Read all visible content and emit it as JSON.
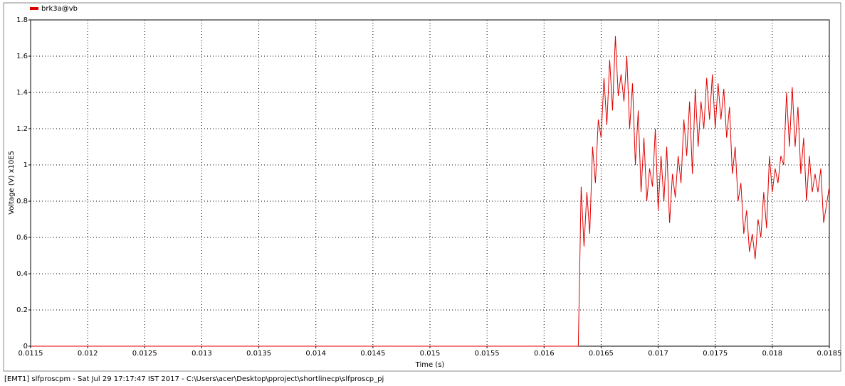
{
  "chart_data": {
    "type": "line",
    "ylabel": "Voltage (V) x10E5",
    "xlabel": "Time (s)",
    "x": [
      0.0115,
      0.0163,
      0.016325,
      0.01635,
      0.016375,
      0.0164,
      0.016425,
      0.01645,
      0.016475,
      0.0165,
      0.016525,
      0.01655,
      0.016575,
      0.0166,
      0.016625,
      0.01665,
      0.016675,
      0.0167,
      0.016725,
      0.01675,
      0.016775,
      0.0168,
      0.016825,
      0.01685,
      0.016875,
      0.0169,
      0.016925,
      0.01695,
      0.016975,
      0.017,
      0.017025,
      0.01705,
      0.017075,
      0.0171,
      0.017125,
      0.01715,
      0.017175,
      0.0172,
      0.017225,
      0.01725,
      0.017275,
      0.0173,
      0.017325,
      0.01735,
      0.017375,
      0.0174,
      0.017425,
      0.01745,
      0.017475,
      0.0175,
      0.017525,
      0.01755,
      0.017575,
      0.0176,
      0.017625,
      0.01765,
      0.017675,
      0.0177,
      0.017725,
      0.01775,
      0.017775,
      0.0178,
      0.017825,
      0.01785,
      0.017875,
      0.0179,
      0.017925,
      0.01795,
      0.017975,
      0.018,
      0.018025,
      0.01805,
      0.018075,
      0.0181,
      0.018125,
      0.01815,
      0.018175,
      0.0182,
      0.018225,
      0.01825,
      0.018275,
      0.0183,
      0.018325,
      0.01835,
      0.018375,
      0.0184,
      0.018425,
      0.01845,
      0.0185
    ],
    "series": [
      {
        "name": "brk3a@vb",
        "color": "#e00000",
        "values": [
          0,
          0,
          0.88,
          0.55,
          0.85,
          0.62,
          1.1,
          0.9,
          1.25,
          1.15,
          1.48,
          1.22,
          1.58,
          1.3,
          1.71,
          1.38,
          1.5,
          1.35,
          1.6,
          1.2,
          1.45,
          1,
          1.3,
          0.85,
          1.15,
          0.8,
          0.98,
          0.88,
          1.2,
          0.75,
          1.05,
          0.8,
          1.1,
          0.68,
          0.95,
          0.82,
          1.05,
          0.9,
          1.25,
          1.05,
          1.35,
          0.95,
          1.42,
          1.1,
          1.35,
          1.2,
          1.48,
          1.25,
          1.5,
          1.2,
          1.45,
          1.25,
          1.42,
          1.15,
          1.32,
          0.95,
          1.1,
          0.8,
          0.9,
          0.62,
          0.75,
          0.52,
          0.62,
          0.48,
          0.7,
          0.6,
          0.85,
          0.65,
          1.05,
          0.85,
          0.98,
          0.9,
          1.05,
          1,
          1.4,
          1.1,
          1.43,
          1.1,
          1.32,
          0.95,
          1.15,
          0.8,
          1.05,
          0.85,
          0.95,
          0.85,
          0.98,
          0.68,
          0.88
        ]
      }
    ],
    "xlim": [
      0.0115,
      0.0185
    ],
    "xticks": [
      0.0115,
      0.012,
      0.0125,
      0.013,
      0.0135,
      0.014,
      0.0145,
      0.015,
      0.0155,
      0.016,
      0.0165,
      0.017,
      0.0175,
      0.018,
      0.0185
    ],
    "ylim": [
      0,
      1.8
    ],
    "yticks": [
      0,
      0.2,
      0.4,
      0.6,
      0.8,
      1,
      1.2,
      1.4,
      1.6,
      1.8
    ],
    "grid": true,
    "legend": "top-left"
  },
  "footer": "[EMT1] slfproscpm - Sat Jul 29 17:17:47 IST 2017 - C:\\Users\\acer\\Desktop\\pproject\\shortlinecp\\slfproscp_pj"
}
